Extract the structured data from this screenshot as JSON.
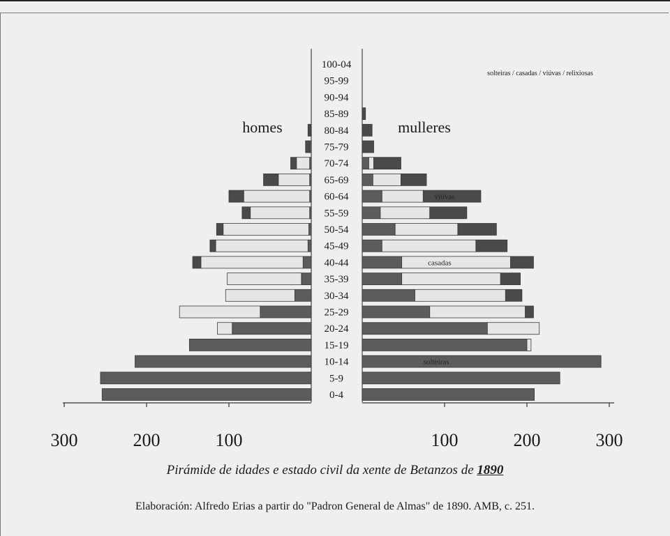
{
  "chart_data": {
    "type": "bar",
    "subtype": "population-pyramid",
    "title_prefix": "Pirámide de idades e estado civil da xente de Betanzos de",
    "title_year": "1890",
    "source": "Elaboración: Alfredo Erias a partir do \"Padron General de Almas\" de 1890. AMB, c. 251.",
    "left_label": "homes",
    "right_label": "mulleres",
    "legend_text": "solteiras / casadas / viúvas / relixiosas",
    "categories": [
      "0-4",
      "5-9",
      "10-14",
      "15-19",
      "20-24",
      "25-29",
      "30-34",
      "35-39",
      "40-44",
      "45-49",
      "50-54",
      "55-59",
      "60-64",
      "65-69",
      "70-74",
      "75-79",
      "80-84",
      "85-89",
      "90-94",
      "95-99",
      "100-04"
    ],
    "x_ticks_left": [
      "300",
      "200",
      "100"
    ],
    "x_ticks_right": [
      "100",
      "200",
      "300"
    ],
    "xlim": [
      0,
      300
    ],
    "inline_labels": [
      {
        "text": "viúvas",
        "category": "60-64",
        "value": 100
      },
      {
        "text": "casadas",
        "category": "40-44",
        "value": 94
      },
      {
        "text": "solteiras",
        "category": "10-14",
        "value": 90
      }
    ],
    "colors": {
      "solteiros": "#5c5c5c",
      "casados": "#e6e6e4",
      "viuvos": "#4a4a4a",
      "edge": "#3a3a3a"
    },
    "series_men": [
      {
        "name": "solteiros",
        "values": [
          254,
          256,
          214,
          148,
          96,
          62,
          20,
          12,
          10,
          4,
          3,
          2,
          2,
          2,
          2,
          2,
          1,
          0,
          0,
          0,
          0
        ]
      },
      {
        "name": "casados",
        "values": [
          0,
          0,
          0,
          0,
          18,
          98,
          84,
          90,
          124,
          112,
          104,
          72,
          80,
          38,
          16,
          0,
          0,
          0,
          0,
          0,
          0
        ]
      },
      {
        "name": "viúvos",
        "values": [
          0,
          0,
          0,
          0,
          0,
          0,
          0,
          0,
          10,
          7,
          8,
          10,
          18,
          18,
          7,
          5,
          3,
          0,
          0,
          0,
          0
        ]
      }
    ],
    "series_women": [
      {
        "name": "solteiras",
        "values": [
          209,
          240,
          290,
          200,
          152,
          82,
          64,
          48,
          48,
          24,
          40,
          22,
          24,
          13,
          8,
          0,
          0,
          0,
          0,
          0,
          0
        ]
      },
      {
        "name": "casadas",
        "values": [
          0,
          0,
          0,
          5,
          63,
          116,
          110,
          120,
          132,
          114,
          76,
          60,
          50,
          34,
          6,
          0,
          0,
          0,
          0,
          0,
          0
        ]
      },
      {
        "name": "viúvas",
        "values": [
          0,
          0,
          0,
          0,
          0,
          10,
          20,
          24,
          28,
          38,
          47,
          45,
          70,
          31,
          33,
          14,
          12,
          4,
          0,
          0,
          0
        ]
      }
    ]
  }
}
